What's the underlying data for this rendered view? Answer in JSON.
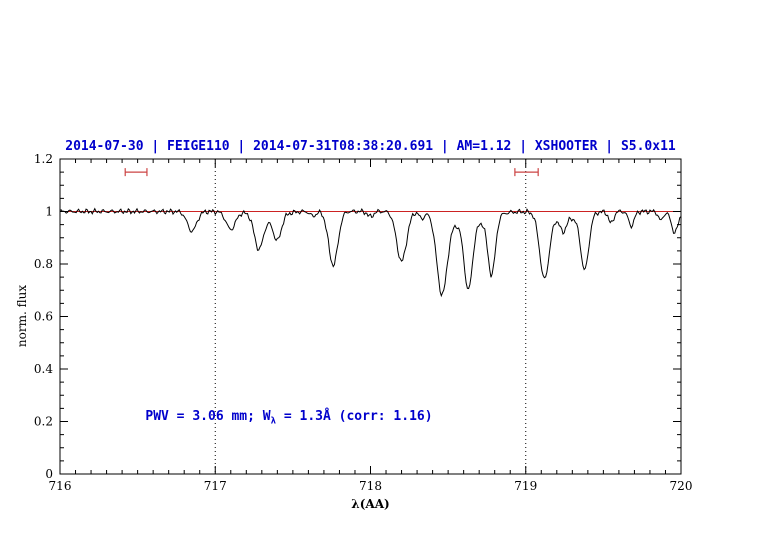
{
  "colors": {
    "title_text": "#0000cc",
    "annotation_text": "#0000cc",
    "continuum_line": "#cc2222",
    "range_marker": "#cc4444",
    "spectrum": "#000000",
    "axes": "#000000"
  },
  "chart_data": {
    "type": "line",
    "title": "2014-07-30 | FEIGE110 | 2014-07-31T08:38:20.691 | AM=1.12 | XSHOOTER | S5.0x11",
    "xlabel": "λ(AA)",
    "ylabel": "norm. flux",
    "xlim": [
      716,
      720
    ],
    "ylim": [
      0,
      1.2
    ],
    "xticks": [
      716,
      717,
      718,
      719,
      720
    ],
    "yticks": [
      0,
      0.2,
      0.4,
      0.6,
      0.8,
      1,
      1.2
    ],
    "x_minor_step": 0.1,
    "y_minor_step": 0.05,
    "grid": false,
    "legend": "none",
    "continuum_level": 1.0,
    "vlines": [
      717,
      719
    ],
    "range_markers": [
      {
        "x1": 716.42,
        "x2": 716.56,
        "y": 1.15
      },
      {
        "x1": 718.93,
        "x2": 719.08,
        "y": 1.15
      }
    ],
    "annotation": {
      "prefix": "PWV = 3.06 mm; W",
      "sub": "λ",
      "suffix": " = 1.3Å (corr: 1.16)",
      "x": 716.55,
      "y": 0.2
    },
    "absorption_lines": [
      {
        "center": 716.85,
        "depth": 0.075,
        "sigma": 0.03
      },
      {
        "center": 717.1,
        "depth": 0.068,
        "sigma": 0.03
      },
      {
        "center": 717.28,
        "depth": 0.122,
        "sigma": 0.028
      },
      {
        "center": 717.4,
        "depth": 0.088,
        "sigma": 0.025
      },
      {
        "center": 717.34,
        "depth": 0.03,
        "sigma": 0.08
      },
      {
        "center": 717.63,
        "depth": 0.018,
        "sigma": 0.018
      },
      {
        "center": 717.76,
        "depth": 0.205,
        "sigma": 0.03
      },
      {
        "center": 718.0,
        "depth": 0.02,
        "sigma": 0.018
      },
      {
        "center": 718.2,
        "depth": 0.19,
        "sigma": 0.032
      },
      {
        "center": 718.33,
        "depth": 0.025,
        "sigma": 0.015
      },
      {
        "center": 718.46,
        "depth": 0.295,
        "sigma": 0.033
      },
      {
        "center": 718.63,
        "depth": 0.245,
        "sigma": 0.026
      },
      {
        "center": 718.78,
        "depth": 0.22,
        "sigma": 0.024
      },
      {
        "center": 718.62,
        "depth": 0.055,
        "sigma": 0.12
      },
      {
        "center": 719.12,
        "depth": 0.245,
        "sigma": 0.03
      },
      {
        "center": 719.24,
        "depth": 0.05,
        "sigma": 0.018
      },
      {
        "center": 719.38,
        "depth": 0.21,
        "sigma": 0.026
      },
      {
        "center": 719.25,
        "depth": 0.03,
        "sigma": 0.1
      },
      {
        "center": 719.55,
        "depth": 0.045,
        "sigma": 0.016
      },
      {
        "center": 719.68,
        "depth": 0.055,
        "sigma": 0.018
      },
      {
        "center": 719.87,
        "depth": 0.035,
        "sigma": 0.015
      },
      {
        "center": 719.96,
        "depth": 0.08,
        "sigma": 0.022
      }
    ],
    "noise_amplitude": 0.008,
    "sample_step": 0.008
  }
}
